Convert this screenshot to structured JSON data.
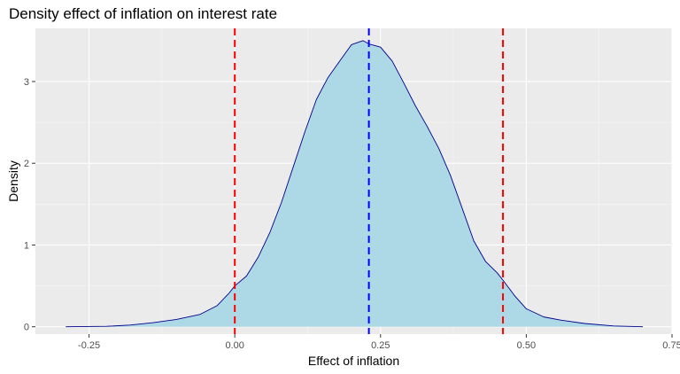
{
  "chart_data": {
    "type": "area",
    "title": "Density effect of inflation on interest rate",
    "xlabel": "Effect of inflation",
    "ylabel": "Density",
    "xlim": [
      -0.342,
      0.75
    ],
    "ylim": [
      -0.09,
      3.65
    ],
    "x_ticks": [
      -0.25,
      0.0,
      0.25,
      0.5,
      0.75
    ],
    "x_tick_labels": [
      "-0.25",
      "0.00",
      "0.25",
      "0.50",
      "0.75"
    ],
    "y_ticks": [
      0,
      1,
      2,
      3
    ],
    "y_tick_labels": [
      "0",
      "1",
      "2",
      "3"
    ],
    "grid": true,
    "colors": {
      "panel": "#ebebeb",
      "grid_major": "#ffffff",
      "grid_minor": "#f5f5f5",
      "fill": "#add8e6",
      "outline": "#00008b",
      "ci_line": "#ff0000",
      "mean_line": "#0000ff"
    },
    "vlines": [
      {
        "x": 0.0,
        "role": "lower bound",
        "color": "#ff0000"
      },
      {
        "x": 0.23,
        "role": "mean",
        "color": "#0000ff"
      },
      {
        "x": 0.46,
        "role": "upper bound",
        "color": "#ff0000"
      }
    ],
    "series": [
      {
        "x": [
          -0.29,
          -0.22,
          -0.18,
          -0.14,
          -0.1,
          -0.06,
          -0.03,
          -0.01,
          0.0,
          0.02,
          0.04,
          0.06,
          0.08,
          0.1,
          0.12,
          0.14,
          0.16,
          0.18,
          0.2,
          0.22,
          0.23,
          0.25,
          0.27,
          0.29,
          0.31,
          0.33,
          0.35,
          0.37,
          0.39,
          0.41,
          0.43,
          0.45,
          0.46,
          0.48,
          0.5,
          0.53,
          0.56,
          0.6,
          0.65,
          0.7
        ],
        "y": [
          0.0,
          0.005,
          0.02,
          0.05,
          0.09,
          0.15,
          0.26,
          0.41,
          0.5,
          0.62,
          0.85,
          1.15,
          1.52,
          1.95,
          2.38,
          2.78,
          3.05,
          3.25,
          3.45,
          3.5,
          3.46,
          3.42,
          3.25,
          2.98,
          2.7,
          2.45,
          2.18,
          1.85,
          1.45,
          1.05,
          0.8,
          0.66,
          0.57,
          0.38,
          0.22,
          0.12,
          0.08,
          0.04,
          0.01,
          0.0
        ]
      }
    ]
  }
}
